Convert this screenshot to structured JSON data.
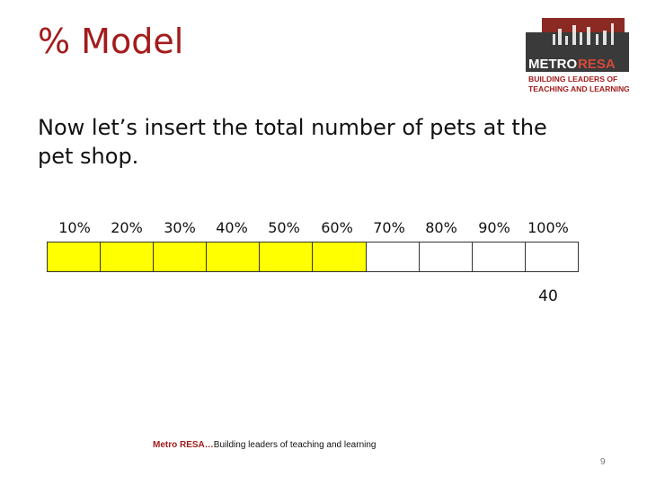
{
  "slide": {
    "title": "% Model",
    "body": "Now let’s insert the total number of pets at the pet shop.",
    "percent_labels": [
      "10%",
      "20%",
      "30%",
      "40%",
      "50%",
      "60%",
      "70%",
      "80%",
      "90%",
      "100%"
    ],
    "filled_cells": 6,
    "total_cells": 10,
    "total_value": "40",
    "footer_brand": "Metro RESA…",
    "footer_text": "Building leaders of teaching and learning",
    "page_number": "9"
  },
  "logo": {
    "metro": "METRO",
    "resa": "RESA",
    "tagline_1": "BUILDING LEADERS OF",
    "tagline_2": "TEACHING AND LEARNING"
  },
  "colors": {
    "title": "#a31b1b",
    "fill": "#ffff00",
    "logo_dark": "#3a3a3a",
    "logo_red": "#a31b1b"
  }
}
